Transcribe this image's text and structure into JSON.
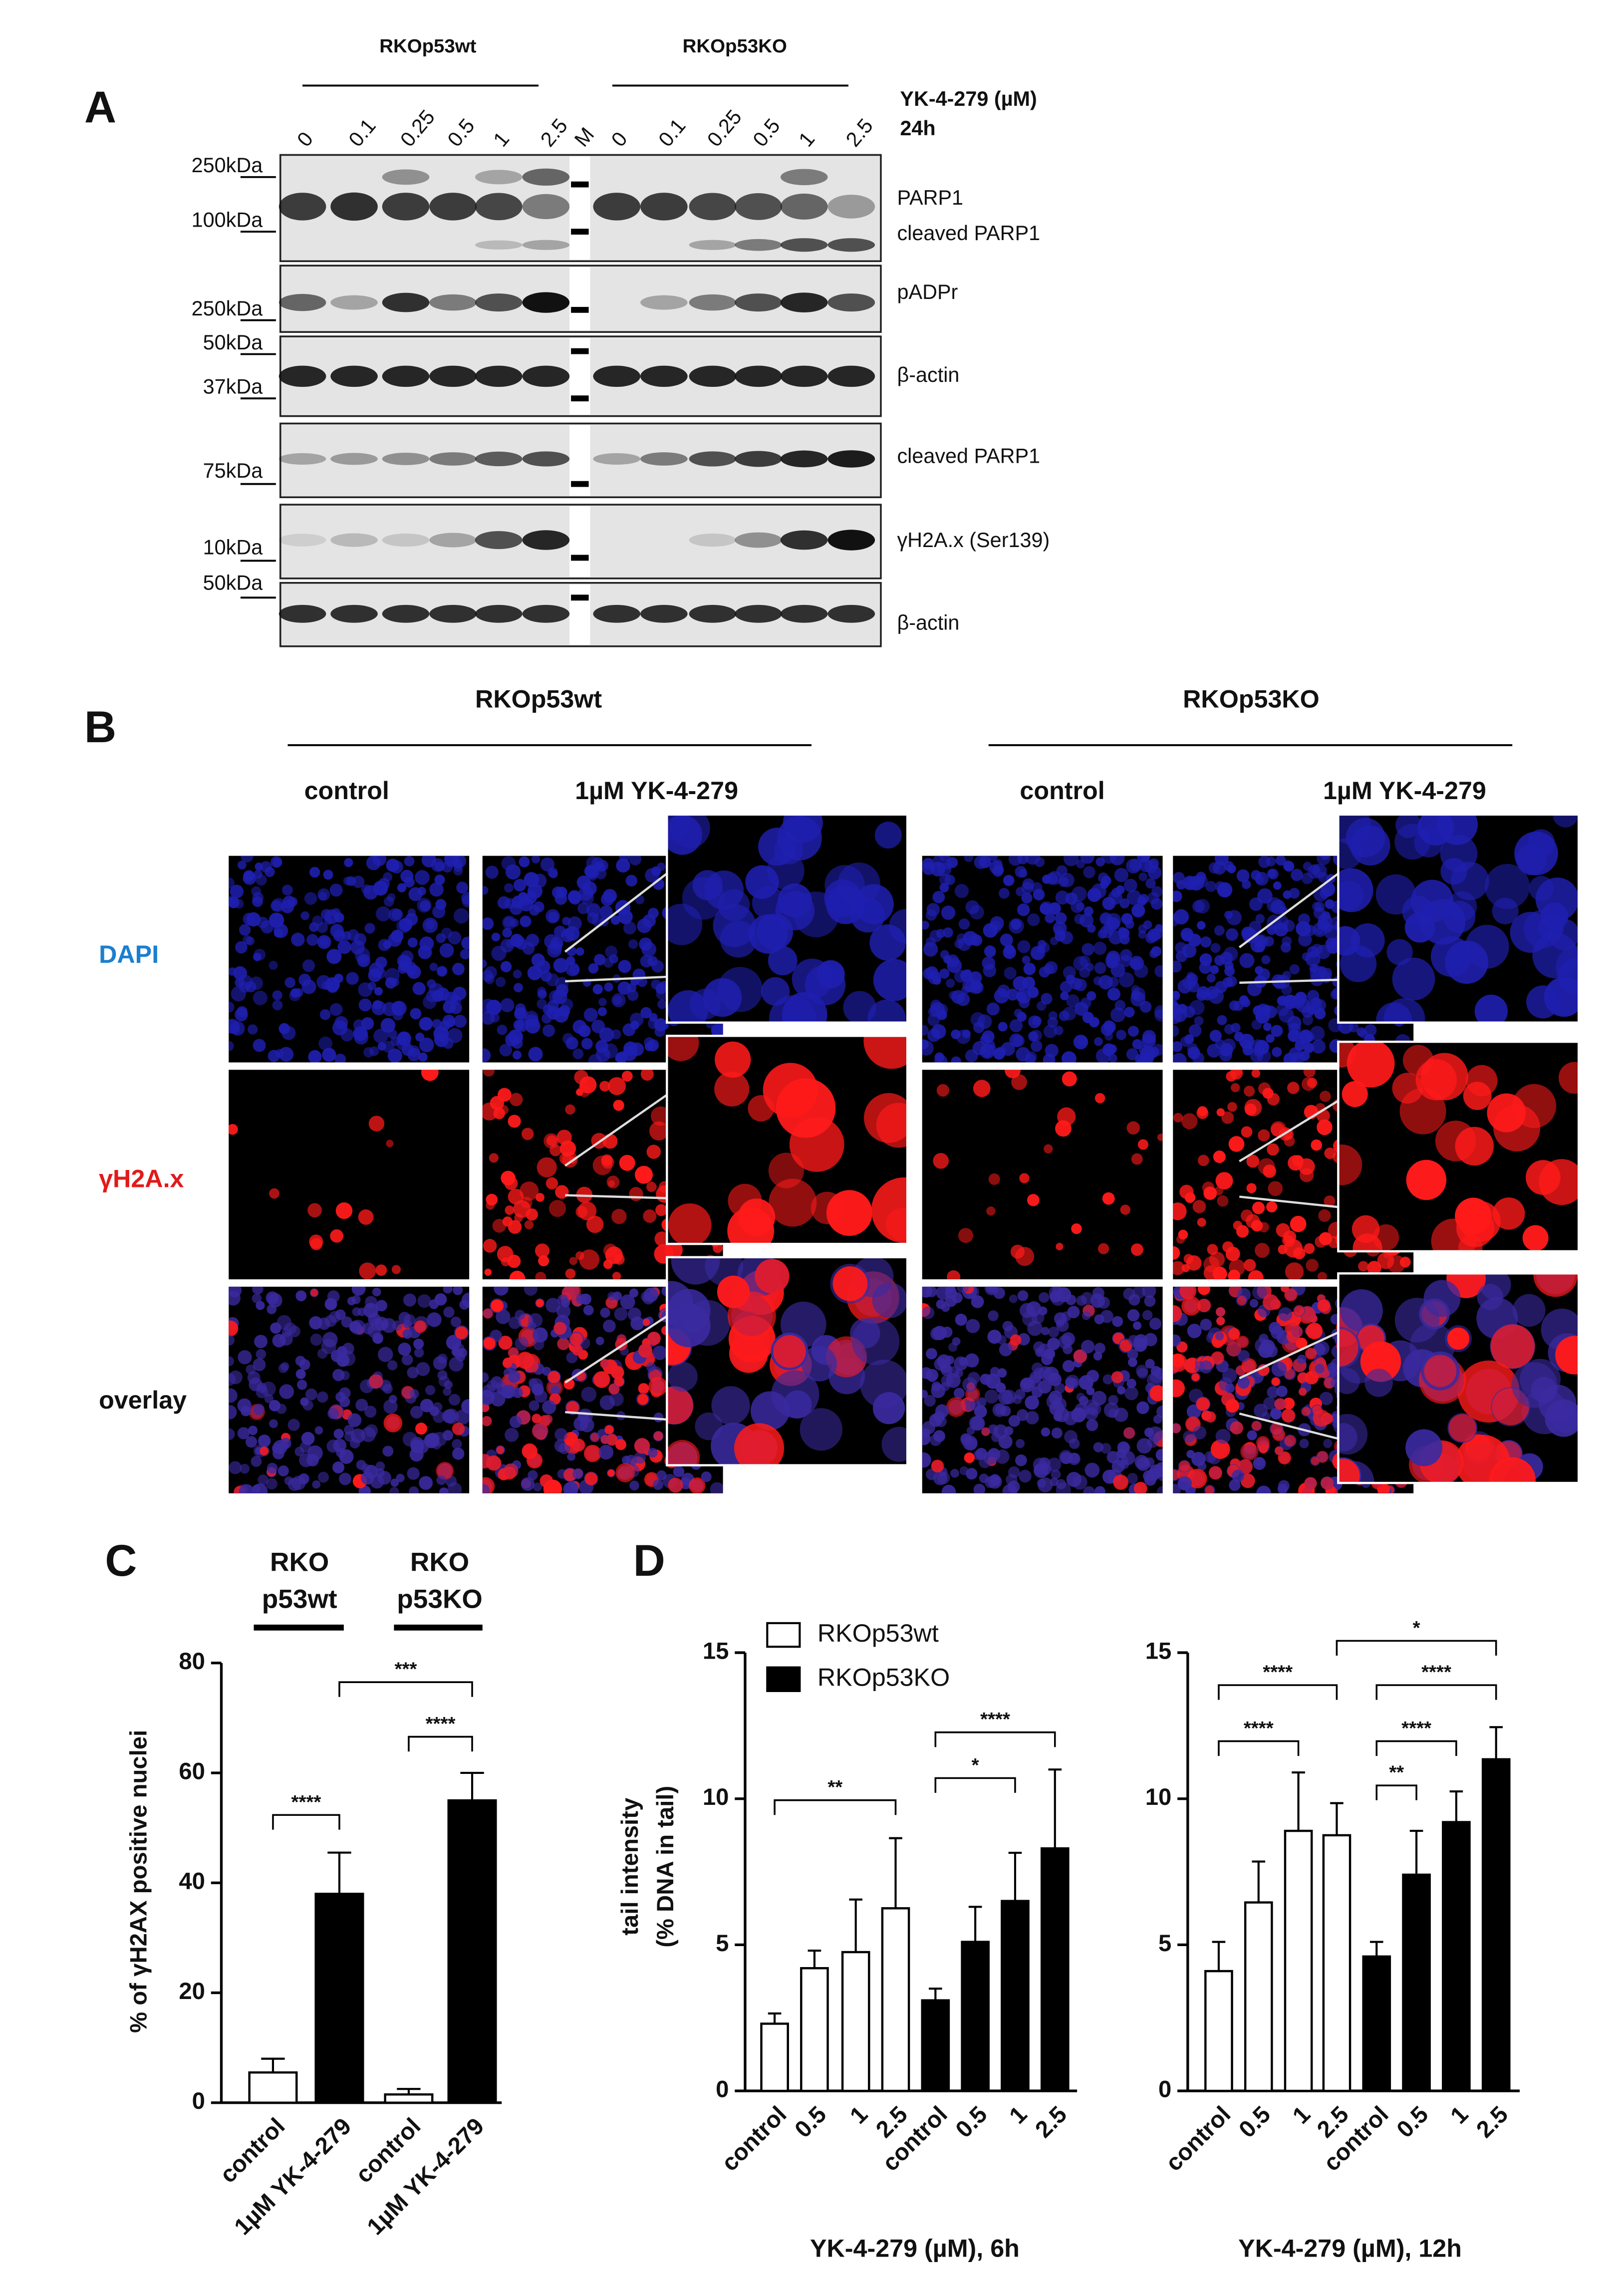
{
  "panel_labels": [
    "A",
    "B",
    "C",
    "D"
  ],
  "blot": {
    "groups": [
      "RKOp53wt",
      "RKOp53KO"
    ],
    "treatment": "YK-4-279 (µM)",
    "time": "24h",
    "doses_wt": [
      "0",
      "0.1",
      "0.25",
      "0.5",
      "1",
      "2.5"
    ],
    "marker": "M",
    "doses_ko": [
      "0",
      "0.1",
      "0.25",
      "0.5",
      "1",
      "2.5"
    ],
    "mw_labels": [
      "250kDa",
      "100kDa",
      "250kDa",
      "50kDa",
      "37kDa",
      "75kDa",
      "10kDa",
      "50kDa"
    ],
    "bands": [
      "PARP1",
      "cleaved PARP1",
      "pADPr",
      "β-actin",
      "cleaved PARP1",
      "γH2A.x (Ser139)",
      "β-actin"
    ]
  },
  "microscopy": {
    "groups": [
      "RKOp53wt",
      "RKOp53KO"
    ],
    "conditions": [
      "control",
      "1µM YK-4-279",
      "control",
      "1µM YK-4-279"
    ],
    "channels": [
      "DAPI",
      "γH2A.x",
      "overlay"
    ]
  },
  "chart_data": [
    {
      "type": "bar",
      "groups": [
        [
          "RKO",
          "p53wt"
        ],
        [
          "RKO",
          "p53KO"
        ]
      ],
      "categories": [
        "control",
        "1µM YK-4-279",
        "control",
        "1µM YK-4-279"
      ],
      "values": [
        5.5,
        38,
        1.5,
        55
      ],
      "errors": [
        2.5,
        7.5,
        1,
        5
      ],
      "colors": [
        "#ffffff",
        "#000000",
        "#ffffff",
        "#000000"
      ],
      "ylabel": "% of γH2AX positive nuclei",
      "ylim": [
        0,
        80
      ],
      "yticks": [
        0,
        20,
        40,
        60,
        80
      ],
      "annotations": [
        "****",
        "***",
        "****"
      ]
    },
    {
      "type": "bar",
      "categories": [
        "control",
        "0.5",
        "1",
        "2.5",
        "control",
        "0.5",
        "1",
        "2.5"
      ],
      "series": [
        {
          "name": "RKOp53wt",
          "color": "#ffffff",
          "values": [
            2.3,
            4.2,
            4.75,
            6.25,
            null,
            null,
            null,
            null
          ],
          "errors": [
            0.35,
            0.6,
            1.8,
            2.4,
            null,
            null,
            null,
            null
          ]
        },
        {
          "name": "RKOp53KO",
          "color": "#000000",
          "values": [
            null,
            null,
            null,
            null,
            3.1,
            5.1,
            6.5,
            8.3
          ],
          "errors": [
            null,
            null,
            null,
            null,
            0.4,
            1.2,
            1.65,
            2.7
          ]
        }
      ],
      "legend": "upper left",
      "ylabel": [
        "tail intensity",
        "(% DNA in tail)"
      ],
      "xlabel": "YK-4-279 (µM), 6h",
      "ylim": [
        0,
        15
      ],
      "yticks": [
        0,
        5,
        10,
        15
      ],
      "annotations": [
        "**",
        "*",
        "****"
      ]
    },
    {
      "type": "bar",
      "categories": [
        "control",
        "0.5",
        "1",
        "2.5",
        "control",
        "0.5",
        "1",
        "2.5"
      ],
      "series": [
        {
          "color": "#ffffff",
          "values": [
            4.1,
            6.45,
            8.9,
            8.75,
            null,
            null,
            null,
            null
          ],
          "errors": [
            1,
            1.4,
            2,
            1.1,
            null,
            null,
            null,
            null
          ]
        },
        {
          "color": "#000000",
          "values": [
            null,
            null,
            null,
            null,
            4.6,
            7.4,
            9.2,
            11.35
          ],
          "errors": [
            null,
            null,
            null,
            null,
            0.5,
            1.5,
            1.05,
            1.1
          ]
        }
      ],
      "xlabel": "YK-4-279 (µM), 12h",
      "ylim": [
        0,
        15
      ],
      "yticks": [
        0,
        5,
        10,
        15
      ],
      "annotations": [
        "****",
        "****",
        "*",
        "****",
        "****",
        "**"
      ]
    }
  ]
}
